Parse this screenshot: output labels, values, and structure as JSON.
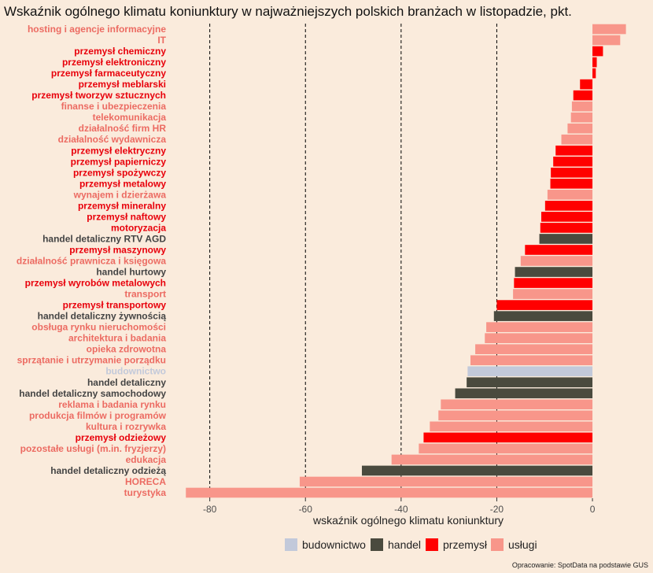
{
  "chart_data": {
    "type": "bar",
    "orientation": "horizontal",
    "title": "Wskaźnik ogólnego klimatu koniunktury w najważniejszych polskich branżach w listopadzie, pkt.",
    "xlabel": "wskaźnik ogólnego klimatu koniunktury",
    "ylabel": "",
    "xlim": [
      -88,
      12
    ],
    "xticks": [
      -80,
      -60,
      -40,
      -20,
      0
    ],
    "reference_lines": [
      -80,
      -60,
      -40,
      -20
    ],
    "source": "Opracowanie: SpotData na podstawie GUS",
    "legend_position": "bottom",
    "groups": [
      {
        "name": "budownictwo",
        "color": "#c2c9da",
        "label_color": "#c2c9da"
      },
      {
        "name": "handel",
        "color": "#4a4a3e",
        "label_color": "#444444"
      },
      {
        "name": "przemysł",
        "color": "#ff0000",
        "label_color": "#e8000b"
      },
      {
        "name": "usługi",
        "color": "#f8968a",
        "label_color": "#ec6b62"
      }
    ],
    "categories": [
      {
        "label": "hosting i agencje informacyjne",
        "value": 7.0,
        "group": "usługi"
      },
      {
        "label": "IT",
        "value": 5.8,
        "group": "usługi"
      },
      {
        "label": "przemysł chemiczny",
        "value": 2.2,
        "group": "przemysł"
      },
      {
        "label": "przemysł elektroniczny",
        "value": 0.9,
        "group": "przemysł"
      },
      {
        "label": "przemysł farmaceutyczny",
        "value": 0.7,
        "group": "przemysł"
      },
      {
        "label": "przemysł meblarski",
        "value": -2.6,
        "group": "przemysł"
      },
      {
        "label": "przemysł tworzyw sztucznych",
        "value": -4.0,
        "group": "przemysł"
      },
      {
        "label": "finanse i ubezpieczenia",
        "value": -4.3,
        "group": "usługi"
      },
      {
        "label": "telekomunikacja",
        "value": -4.5,
        "group": "usługi"
      },
      {
        "label": "działalność firm HR",
        "value": -5.2,
        "group": "usługi"
      },
      {
        "label": "działalność wydawnicza",
        "value": -6.5,
        "group": "usługi"
      },
      {
        "label": "przemysł elektryczny",
        "value": -7.7,
        "group": "przemysł"
      },
      {
        "label": "przemysł papierniczy",
        "value": -8.2,
        "group": "przemysł"
      },
      {
        "label": "przemysł spożywczy",
        "value": -8.7,
        "group": "przemysł"
      },
      {
        "label": "przemysł metalowy",
        "value": -8.8,
        "group": "przemysł"
      },
      {
        "label": "wynajem i dzierżawa",
        "value": -9.4,
        "group": "usługi"
      },
      {
        "label": "przemysł mineralny",
        "value": -9.9,
        "group": "przemysł"
      },
      {
        "label": "przemysł naftowy",
        "value": -10.7,
        "group": "przemysł"
      },
      {
        "label": "motoryzacja",
        "value": -10.9,
        "group": "przemysł"
      },
      {
        "label": "handel detaliczny RTV AGD",
        "value": -11.1,
        "group": "handel"
      },
      {
        "label": "przemysł maszynowy",
        "value": -14.1,
        "group": "przemysł"
      },
      {
        "label": "działalność prawnicza i księgowa",
        "value": -15.0,
        "group": "usługi"
      },
      {
        "label": "handel hurtowy",
        "value": -16.2,
        "group": "handel"
      },
      {
        "label": "przemysł wyrobów metalowych",
        "value": -16.4,
        "group": "przemysł"
      },
      {
        "label": "transport",
        "value": -16.6,
        "group": "usługi"
      },
      {
        "label": "przemysł transportowy",
        "value": -20.0,
        "group": "przemysł"
      },
      {
        "label": "handel detaliczny żywnością",
        "value": -20.6,
        "group": "handel"
      },
      {
        "label": "obsługa rynku nieruchomości",
        "value": -22.2,
        "group": "usługi"
      },
      {
        "label": "architektura i badania",
        "value": -22.5,
        "group": "usługi"
      },
      {
        "label": "opieka zdrowotna",
        "value": -24.5,
        "group": "usługi"
      },
      {
        "label": "sprzątanie i utrzymanie porządku",
        "value": -25.5,
        "group": "usługi"
      },
      {
        "label": "budownictwo",
        "value": -26.1,
        "group": "budownictwo"
      },
      {
        "label": "handel detaliczny",
        "value": -26.3,
        "group": "handel"
      },
      {
        "label": "handel detaliczny samochodowy",
        "value": -28.7,
        "group": "handel"
      },
      {
        "label": "reklama i badania rynku",
        "value": -31.7,
        "group": "usługi"
      },
      {
        "label": "produkcja filmów i programów",
        "value": -32.2,
        "group": "usługi"
      },
      {
        "label": "kultura i rozrywka",
        "value": -34.0,
        "group": "usługi"
      },
      {
        "label": "przemysł odzieżowy",
        "value": -35.3,
        "group": "przemysł"
      },
      {
        "label": "pozostałe usługi (m.in. fryzjerzy)",
        "value": -36.3,
        "group": "usługi"
      },
      {
        "label": "edukacja",
        "value": -42.0,
        "group": "usługi"
      },
      {
        "label": "handel detaliczny odzieżą",
        "value": -48.2,
        "group": "handel"
      },
      {
        "label": "HORECA",
        "value": -61.2,
        "group": "usługi"
      },
      {
        "label": "turystyka",
        "value": -85.0,
        "group": "usługi"
      }
    ]
  }
}
